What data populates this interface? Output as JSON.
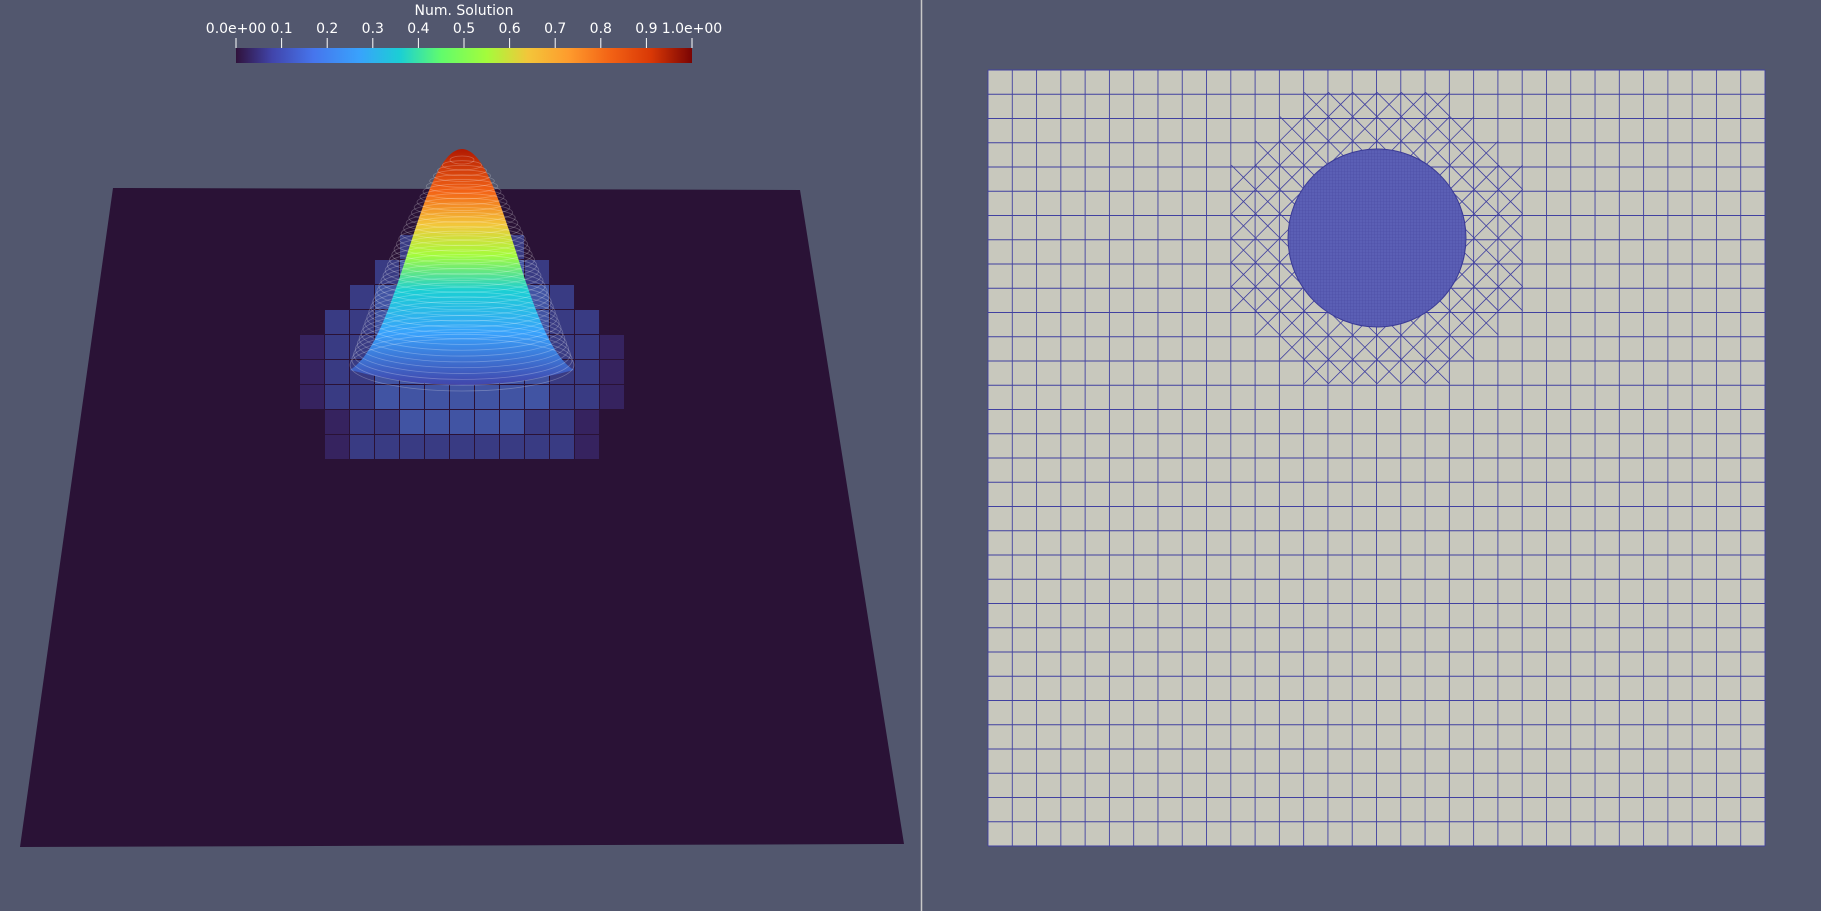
{
  "colorbar": {
    "title": "Num. Solution",
    "range": [
      0,
      1
    ],
    "ticks": [
      {
        "value": 0,
        "label": "0.0e+00"
      },
      0.1,
      0.2,
      0.3,
      0.4,
      0.5,
      0.6,
      0.7,
      0.8,
      0.9,
      {
        "value": 1,
        "label": "1.0e+00"
      }
    ]
  }
}
